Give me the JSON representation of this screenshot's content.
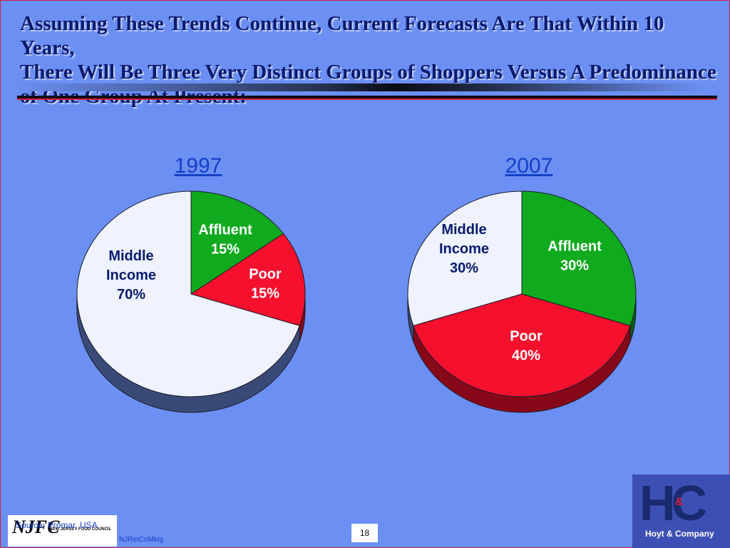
{
  "slide": {
    "title_lines": [
      "Assuming These Trends Continue, Current Forecasts Are That Within 10 Years,",
      "There Will Be Three Very Distinct Groups of Shoppers Versus A Predominance",
      "of One Group At Present:"
    ],
    "source": "Source: Promar, USA",
    "filename": "NJRetCoMktg",
    "page_number": "18",
    "logo_left_mark": "NJFC",
    "logo_left_sub": "NEW JERSEY FOOD COUNCIL",
    "logo_right_mark": "HC",
    "logo_right_amp": "&",
    "logo_right_name": "Hoyt & Company"
  },
  "colors": {
    "background": "#6b8ff2",
    "title": "#0a1a6e",
    "year": "#1540c8",
    "affluent": "#0faa1e",
    "poor": "#f5102e",
    "middle": "#eef3ff"
  },
  "chart_data": [
    {
      "type": "pie",
      "title": "1997",
      "slices": [
        {
          "name": "Affluent",
          "value": 15,
          "label": "15%",
          "color": "#0faa1e",
          "text_color": "#ffffff"
        },
        {
          "name": "Poor",
          "value": 15,
          "label": "15%",
          "color": "#f5102e",
          "text_color": "#ffffff"
        },
        {
          "name": "Middle Income",
          "value": 70,
          "label": "70%",
          "color": "#eef3ff",
          "text_color": "#0a1a6e"
        }
      ]
    },
    {
      "type": "pie",
      "title": "2007",
      "slices": [
        {
          "name": "Affluent",
          "value": 30,
          "label": "30%",
          "color": "#0faa1e",
          "text_color": "#ffffff"
        },
        {
          "name": "Poor",
          "value": 40,
          "label": "40%",
          "color": "#f5102e",
          "text_color": "#ffffff"
        },
        {
          "name": "Middle Income",
          "value": 30,
          "label": "30%",
          "color": "#eef3ff",
          "text_color": "#0a1a6e"
        }
      ]
    }
  ]
}
